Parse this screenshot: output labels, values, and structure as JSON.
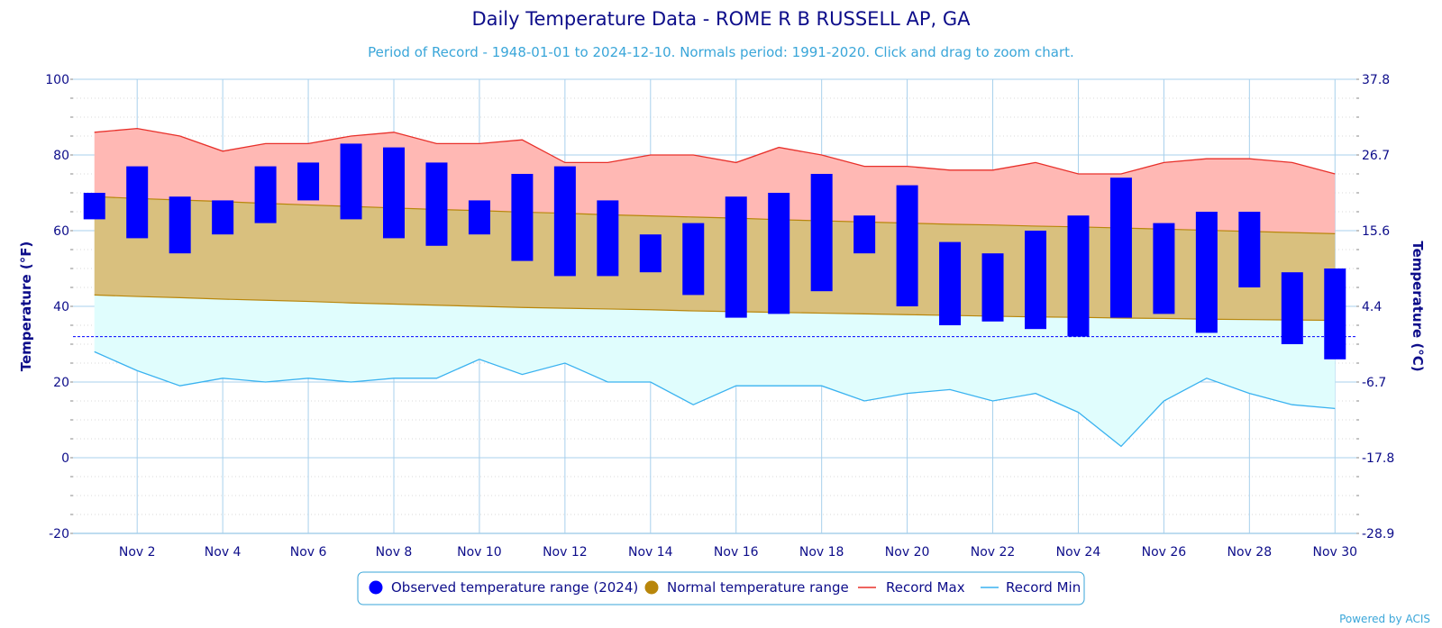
{
  "title": "Daily Temperature Data - ROME R B RUSSELL AP, GA",
  "subtitle": "Period of Record - 1948-01-01 to 2024-12-10. Normals period: 1991-2020. Click and drag to zoom chart.",
  "credit": "Powered by ACIS",
  "colors": {
    "observed": "#0000ff",
    "normal_fill": "#d9c07e",
    "normal_line": "#b8860b",
    "record_max_fill": "#ffb8b4",
    "record_max_line": "#e8302a",
    "record_min_fill": "#e0fdfd",
    "record_min_line": "#3ab2f0",
    "freezing_line": "#0000ff",
    "grid": "#a8d0ec",
    "text": "#0d0d8a"
  },
  "chart_data": {
    "type": "bar",
    "x": [
      1,
      2,
      3,
      4,
      5,
      6,
      7,
      8,
      9,
      10,
      11,
      12,
      13,
      14,
      15,
      16,
      17,
      18,
      19,
      20,
      21,
      22,
      23,
      24,
      25,
      26,
      27,
      28,
      29,
      30
    ],
    "x_tick_labels": [
      "Nov 2",
      "Nov 4",
      "Nov 6",
      "Nov 8",
      "Nov 10",
      "Nov 12",
      "Nov 14",
      "Nov 16",
      "Nov 18",
      "Nov 20",
      "Nov 22",
      "Nov 24",
      "Nov 26",
      "Nov 28",
      "Nov 30"
    ],
    "x_tick_values": [
      2,
      4,
      6,
      8,
      10,
      12,
      14,
      16,
      18,
      20,
      22,
      24,
      26,
      28,
      30
    ],
    "xlim": [
      0.5,
      30.5
    ],
    "ylim": [
      -20,
      100
    ],
    "y_ticks": [
      -20,
      0,
      20,
      40,
      60,
      80,
      100
    ],
    "ylabel": "Temperature (°F)",
    "ylabel_right": "Temperature (°C)",
    "y_ticks_right": [
      -28.9,
      -17.8,
      -6.7,
      4.4,
      15.6,
      26.7,
      37.8
    ],
    "y_ticks_right_f": [
      -20,
      0,
      20,
      40,
      60,
      80,
      100
    ],
    "freezing_line": 32,
    "grid": true,
    "legend_position": "bottom-center",
    "series": [
      {
        "name": "Observed temperature range (2024)",
        "type": "range-bar",
        "low": [
          63,
          58,
          54,
          59,
          62,
          68,
          63,
          58,
          56,
          59,
          52,
          48,
          48,
          49,
          43,
          37,
          38,
          44,
          54,
          40,
          35,
          36,
          34,
          32,
          37,
          38,
          33,
          45,
          30,
          26
        ],
        "high": [
          70,
          77,
          69,
          68,
          77,
          78,
          83,
          82,
          78,
          68,
          75,
          77,
          68,
          59,
          62,
          69,
          70,
          75,
          64,
          72,
          57,
          54,
          60,
          64,
          74,
          62,
          65,
          65,
          49,
          50
        ]
      },
      {
        "name": "Normal temperature range",
        "type": "area-range",
        "low": [
          43,
          42.6,
          42.3,
          41.9,
          41.6,
          41.3,
          40.9,
          40.6,
          40.3,
          40,
          39.7,
          39.5,
          39.3,
          39.1,
          38.8,
          38.6,
          38.4,
          38.2,
          38,
          37.8,
          37.6,
          37.4,
          37.2,
          37.1,
          36.9,
          36.8,
          36.6,
          36.5,
          36.4,
          36.3
        ],
        "high": [
          69,
          68.5,
          68.1,
          67.7,
          67.2,
          66.8,
          66.4,
          66,
          65.6,
          65.3,
          64.9,
          64.6,
          64.2,
          63.9,
          63.6,
          63.3,
          62.9,
          62.6,
          62.3,
          62,
          61.7,
          61.5,
          61.2,
          61,
          60.7,
          60.4,
          60.1,
          59.8,
          59.5,
          59.2
        ]
      },
      {
        "name": "Record Max",
        "type": "line",
        "values": [
          86,
          87,
          85,
          81,
          83,
          83,
          85,
          86,
          83,
          83,
          84,
          78,
          78,
          80,
          80,
          78,
          82,
          80,
          77,
          77,
          76,
          76,
          78,
          75,
          75,
          78,
          79,
          79,
          78,
          75
        ]
      },
      {
        "name": "Record Min",
        "type": "line",
        "values": [
          28,
          23,
          19,
          21,
          20,
          21,
          20,
          21,
          21,
          26,
          22,
          25,
          20,
          20,
          14,
          19,
          19,
          19,
          15,
          17,
          18,
          15,
          17,
          12,
          3,
          15,
          21,
          17,
          14,
          13
        ]
      }
    ]
  }
}
